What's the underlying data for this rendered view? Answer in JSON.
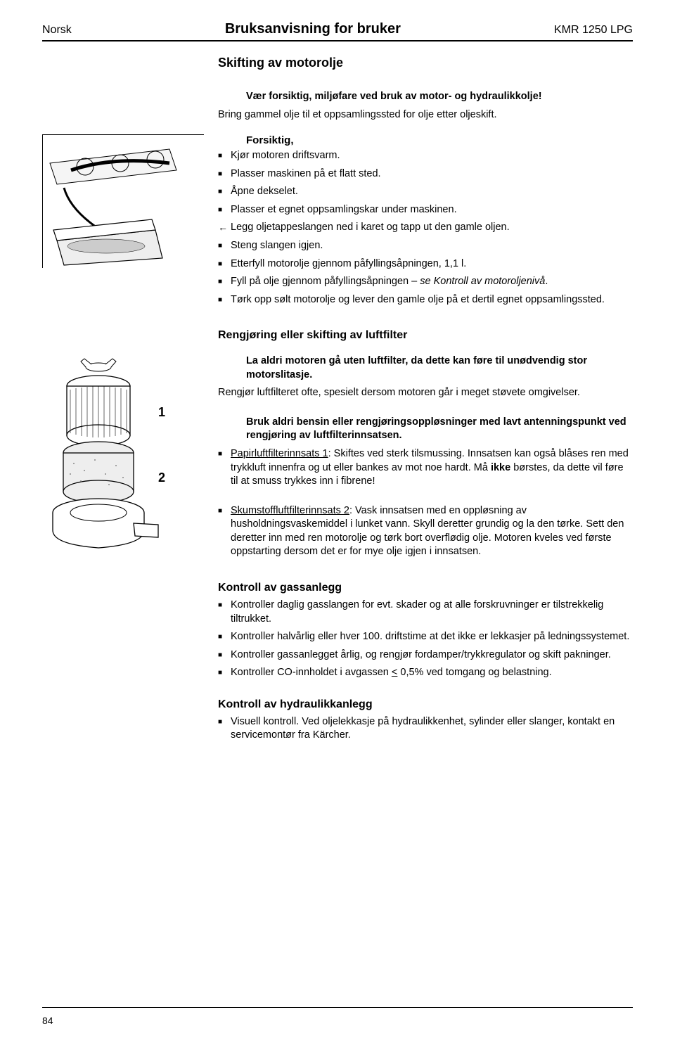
{
  "header": {
    "left": "Norsk",
    "center": "Bruksanvisning for bruker",
    "right": "KMR 1250 LPG"
  },
  "section1": {
    "title": "Skifting av motorolje",
    "warning_bold": "Vær forsiktig, miljøfare ved bruk av motor- og hydraulikkolje!",
    "warning_text": "Bring gammel olje til et oppsamlingssted for olje etter oljeskift.",
    "sub_heading": "Forsiktig,",
    "items": [
      "Kjør motoren driftsvarm.",
      "Plasser maskinen på et flatt sted.",
      "Åpne dekselet.",
      "Plasser et egnet oppsamlingskar under maskinen.",
      "Legg oljetappeslangen ned i karet og tapp ut den gamle oljen.",
      "Steng slangen igjen.",
      "Etterfyll motorolje gjennom påfyllingsåpningen, 1,1 l.",
      "Fyll på olje gjennom påfyllingsåpningen – se Kontroll av motoroljenivå.",
      "Tørk opp sølt motorolje og lever den gamle olje på et dertil egnet oppsamlingssted."
    ],
    "arrow_index": 4,
    "italic_phrase": "se Kontroll av motoroljenivå"
  },
  "section2": {
    "title": "Rengjøring eller skifting av luftfilter",
    "label1": "1",
    "label2": "2",
    "block1_bold": "La aldri motoren gå uten luftfilter, da dette kan føre til unødvendig stor motorslitasje.",
    "block1_text": "Rengjør luftfilteret ofte, spesielt dersom motoren går i meget støvete omgivelser.",
    "block2_bold": "Bruk aldri bensin eller rengjøringsoppløsninger med lavt antenningspunkt ved rengjøring av luftfilterinnsatsen.",
    "papir_label": "Papirluftfilterinnsats 1",
    "papir_text_a": ": Skiftes ved sterk tilsmussing. Innsatsen kan også blåses ren med trykkluft innenfra og ut eller bankes av mot noe hardt. Må ",
    "papir_bold": "ikke",
    "papir_text_b": " børstes, da dette vil føre til at smuss trykkes inn i fibrene!",
    "skum_label": "Skumstoffluftfilterinnsats 2",
    "skum_text": ": Vask innsatsen med en oppløsning av husholdningsvaskemiddel i lunket vann. Skyll deretter grundig og la den tørke. Sett den deretter inn med ren motorolje og tørk bort overflødig olje. Motoren kveles ved første oppstarting dersom det er for mye olje igjen i innsatsen."
  },
  "section3": {
    "title": "Kontroll av gassanlegg",
    "items": [
      "Kontroller daglig gasslangen for evt. skader og at alle forskruvninger er tilstrekkelig tiltrukket.",
      "Kontroller halvårlig eller hver 100. driftstime at det ikke er lekkasjer på ledningssystemet.",
      "Kontroller gassanlegget årlig, og rengjør fordamper/trykkregulator og skift pakninger.",
      "Kontroller CO-innholdet i avgassen < 0,5% ved tomgang og belastning."
    ],
    "underline_only": "<"
  },
  "section4": {
    "title": "Kontroll av hydraulikkanlegg",
    "items": [
      "Visuell kontroll. Ved oljelekkasje på hydraulikkenhet, sylinder eller slanger, kontakt en servicemontør fra Kärcher."
    ]
  },
  "page_number": "84"
}
